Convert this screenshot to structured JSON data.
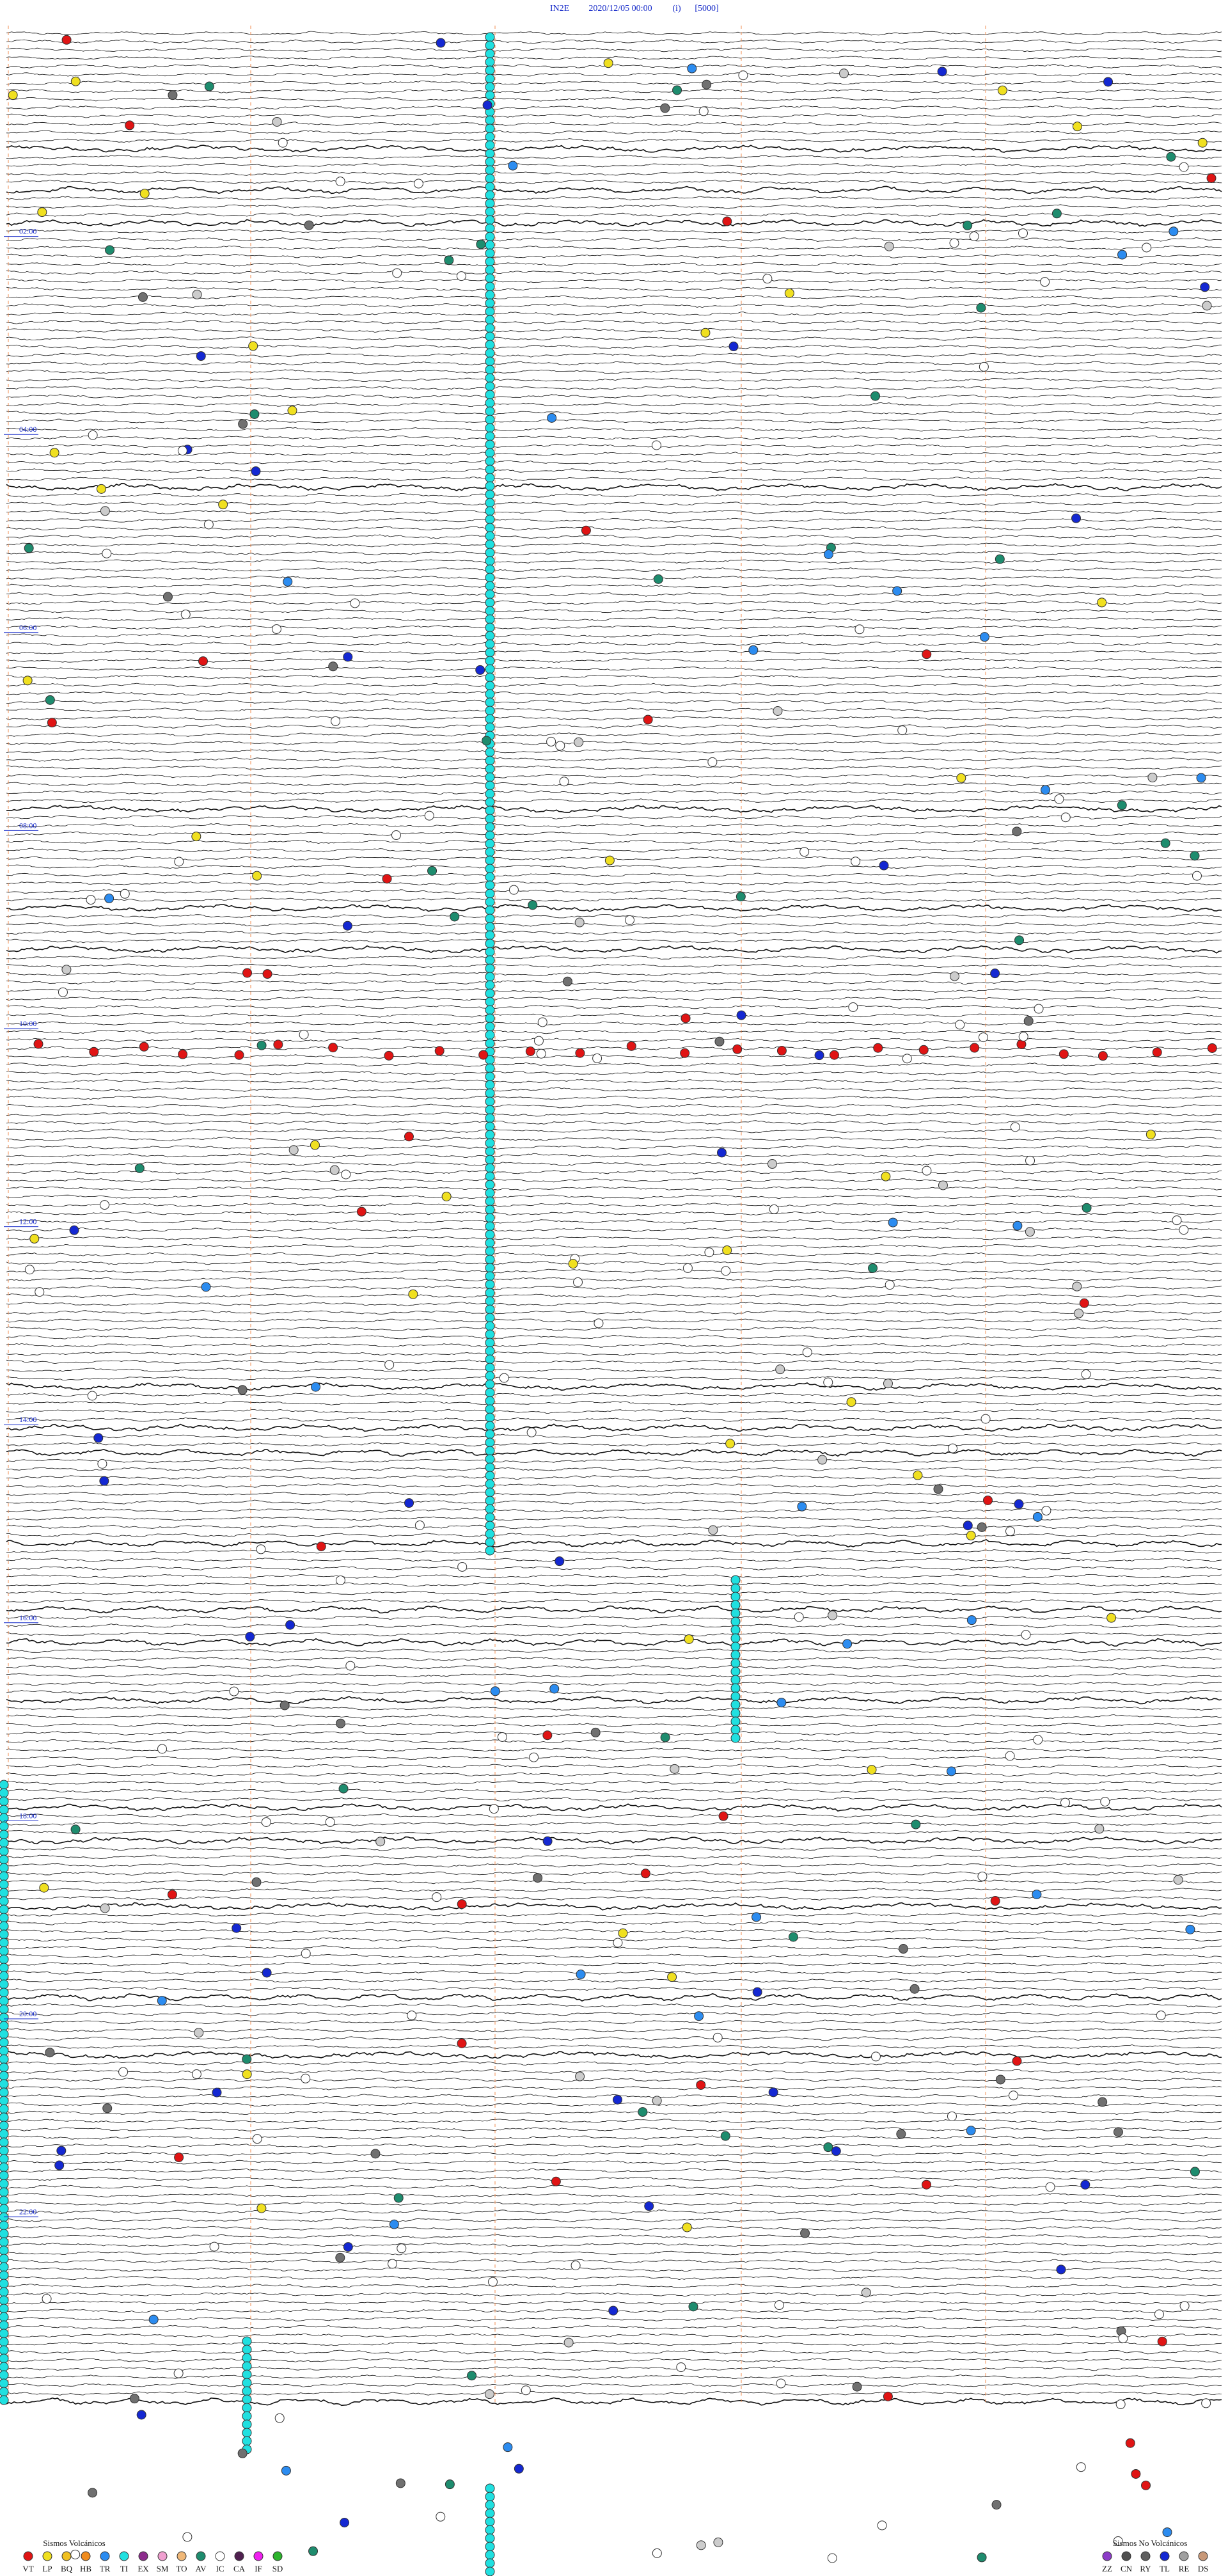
{
  "header": {
    "station": "IN2E",
    "datetime": "2020/12/05 00:00",
    "mode": "(i)",
    "scale": "[5000]"
  },
  "hour_labels": [
    "02:00",
    "04:00",
    "06:00",
    "08:00",
    "10:00",
    "12:00",
    "14:00",
    "16:00",
    "18:00",
    "20:00",
    "22:00"
  ],
  "legend": {
    "volcanic": {
      "title": "Sismos Volcánicos",
      "items": [
        {
          "code": "VT",
          "color": "#e01414"
        },
        {
          "code": "LP",
          "color": "#f0e020"
        },
        {
          "code": "BQ",
          "color": "#f0c020"
        },
        {
          "code": "HB",
          "color": "#f08c1e"
        },
        {
          "code": "TR",
          "color": "#2c8cf0"
        },
        {
          "code": "TI",
          "color": "#20e0e0"
        },
        {
          "code": "EX",
          "color": "#8c2c8c"
        },
        {
          "code": "SM",
          "color": "#f0a0d0"
        },
        {
          "code": "TO",
          "color": "#f0b878"
        },
        {
          "code": "AV",
          "color": "#1e8c6e"
        },
        {
          "code": "IC",
          "color": "#ffffff"
        },
        {
          "code": "CA",
          "color": "#502050"
        },
        {
          "code": "IF",
          "color": "#f020f0"
        },
        {
          "code": "SD",
          "color": "#2cb42c"
        }
      ]
    },
    "non_volcanic": {
      "title": "Sismos No Volcánicos",
      "items": [
        {
          "code": "ZZ",
          "color": "#8c3cc8"
        },
        {
          "code": "CN",
          "color": "#505050"
        },
        {
          "code": "RY",
          "color": "#606060"
        },
        {
          "code": "TL",
          "color": "#1428d2"
        },
        {
          "code": "RE",
          "color": "#a0a0a0"
        },
        {
          "code": "DS",
          "color": "#c89878"
        }
      ]
    }
  }
}
